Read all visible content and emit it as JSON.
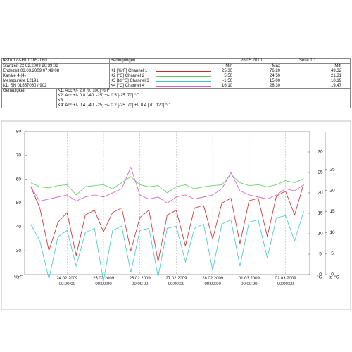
{
  "header": {
    "device": "testo 177-H1 01657060",
    "conditions": "Bedingungen",
    "date": "26.05.2010",
    "page": "Seite 1/1",
    "info": [
      "Startzeit 22.02.2009 20:39:08",
      "Endezeit 03.03.2009 07:49:08",
      "Kanäle 4 (4)",
      "Messpunkte 12191",
      "K1: SN 01657060 / 902"
    ],
    "stat_columns": [
      "Min",
      "Max",
      "Mitt"
    ],
    "accuracy_title": "Genauigkeit",
    "accuracy": [
      "K1: Acc:+/- 2.0 [0..100] %rF",
      "K2: Acc:+/- 0.8 [-40..-25] +/- 0.5 [-25..70] °C",
      "K3:",
      "K4: Acc:+/- 0.4 [-40..-25] +/- 0.2 [-25..70] +/- 0.4 [70..120] °C"
    ]
  },
  "chart_data": {
    "type": "line",
    "x": [
      "23.02.2009 00:00:00",
      "23.02.2009 06:00:00",
      "23.02.2009 12:00:00",
      "23.02.2009 18:00:00",
      "24.02.2009 00:00:00",
      "24.02.2009 06:00:00",
      "24.02.2009 12:00:00",
      "24.02.2009 18:00:00",
      "25.02.2009 00:00:00",
      "25.02.2009 06:00:00",
      "25.02.2009 12:00:00",
      "25.02.2009 18:00:00",
      "26.02.2009 00:00:00",
      "26.02.2009 06:00:00",
      "26.02.2009 12:00:00",
      "26.02.2009 18:00:00",
      "27.02.2009 00:00:00",
      "27.02.2009 06:00:00",
      "27.02.2009 12:00:00",
      "27.02.2009 18:00:00",
      "28.02.2009 00:00:00",
      "28.02.2009 06:00:00",
      "28.02.2009 12:00:00",
      "28.02.2009 18:00:00",
      "01.03.2009 00:00:00",
      "01.03.2009 06:00:00",
      "01.03.2009 12:00:00",
      "01.03.2009 18:00:00",
      "02.03.2009 00:00:00",
      "02.03.2009 06:00:00",
      "02.03.2009 12:00:00"
    ],
    "xlim": [
      "22.02.2009 20:00:00",
      "02.03.2009 16:00:00"
    ],
    "xticks": [
      "24.02.2009 00:00:00",
      "25.02.2009 00:00:00",
      "26.02.2009 00:00:00",
      "27.02.2009 00:00:00",
      "28.02.2009 00:00:00",
      "01.03.2009 00:00:00",
      "02.03.2009 00:00:00"
    ],
    "y_label": "%rF",
    "ylim": [
      20,
      80
    ],
    "yticks": [
      30,
      40,
      50,
      60,
      70,
      80
    ],
    "y2_label": "°C",
    "y2lim": [
      0,
      35
    ],
    "y2ticks": [
      0,
      5,
      10,
      15,
      20,
      25,
      30
    ],
    "y3_label": "td °C",
    "y3lim": [
      0,
      34
    ],
    "y3ticks": [
      0,
      5,
      10,
      15,
      20,
      25
    ],
    "grid": true,
    "series": [
      {
        "name": "K1 [%rF] Channel 1",
        "axis": "y",
        "color": "#d02828",
        "stats": [
          "25.30",
          "76.20",
          "49.32"
        ],
        "values": [
          57.0,
          48.0,
          30.0,
          42.0,
          46.0,
          28.0,
          45.0,
          47.0,
          38.0,
          46.0,
          48.0,
          30.0,
          44.0,
          47.0,
          25.3,
          45.0,
          47.0,
          32.0,
          48.0,
          49.0,
          35.0,
          50.0,
          52.0,
          33.0,
          51.0,
          52.0,
          36.0,
          53.0,
          55.0,
          45.0,
          58.0
        ]
      },
      {
        "name": "K2 [°C] Channel 2",
        "axis": "y2",
        "color": "#5ccc5c",
        "stats": [
          "5.50",
          "24.50",
          "21.31"
        ],
        "values": [
          22.5,
          21.5,
          21.2,
          21.8,
          22.0,
          19.5,
          21.5,
          21.8,
          22.0,
          21.0,
          22.5,
          24.0,
          22.0,
          21.5,
          21.8,
          20.0,
          21.5,
          22.0,
          21.0,
          21.5,
          21.8,
          22.0,
          24.5,
          22.5,
          21.8,
          22.0,
          21.5,
          22.0,
          23.0,
          22.5,
          23.5
        ]
      },
      {
        "name": "K3 [td °C] Channel 3",
        "axis": "y3",
        "color": "#3cc8cc",
        "stats": [
          "-1.50",
          "15.00",
          "10.19"
        ],
        "values": [
          12.0,
          8.0,
          -1.0,
          9.0,
          10.5,
          2.0,
          10.0,
          11.0,
          -1.5,
          10.5,
          11.5,
          0.5,
          10.5,
          11.0,
          -0.5,
          11.0,
          11.5,
          3.0,
          11.0,
          12.0,
          1.0,
          12.0,
          13.0,
          2.0,
          12.5,
          13.0,
          4.0,
          13.5,
          14.0,
          8.0,
          15.0
        ]
      },
      {
        "name": "K4 [°C] Channel 4",
        "axis": "y2",
        "color": "#cc5ccc",
        "stats": [
          "16.10",
          "26.30",
          "19.47"
        ],
        "values": [
          21.5,
          18.0,
          18.5,
          19.0,
          19.5,
          18.0,
          19.0,
          19.5,
          19.0,
          20.0,
          21.0,
          26.3,
          19.5,
          18.5,
          19.0,
          17.5,
          19.0,
          19.5,
          18.5,
          19.0,
          19.5,
          21.0,
          25.0,
          20.5,
          19.5,
          19.0,
          18.5,
          19.5,
          21.0,
          20.5,
          22.0
        ]
      }
    ]
  }
}
